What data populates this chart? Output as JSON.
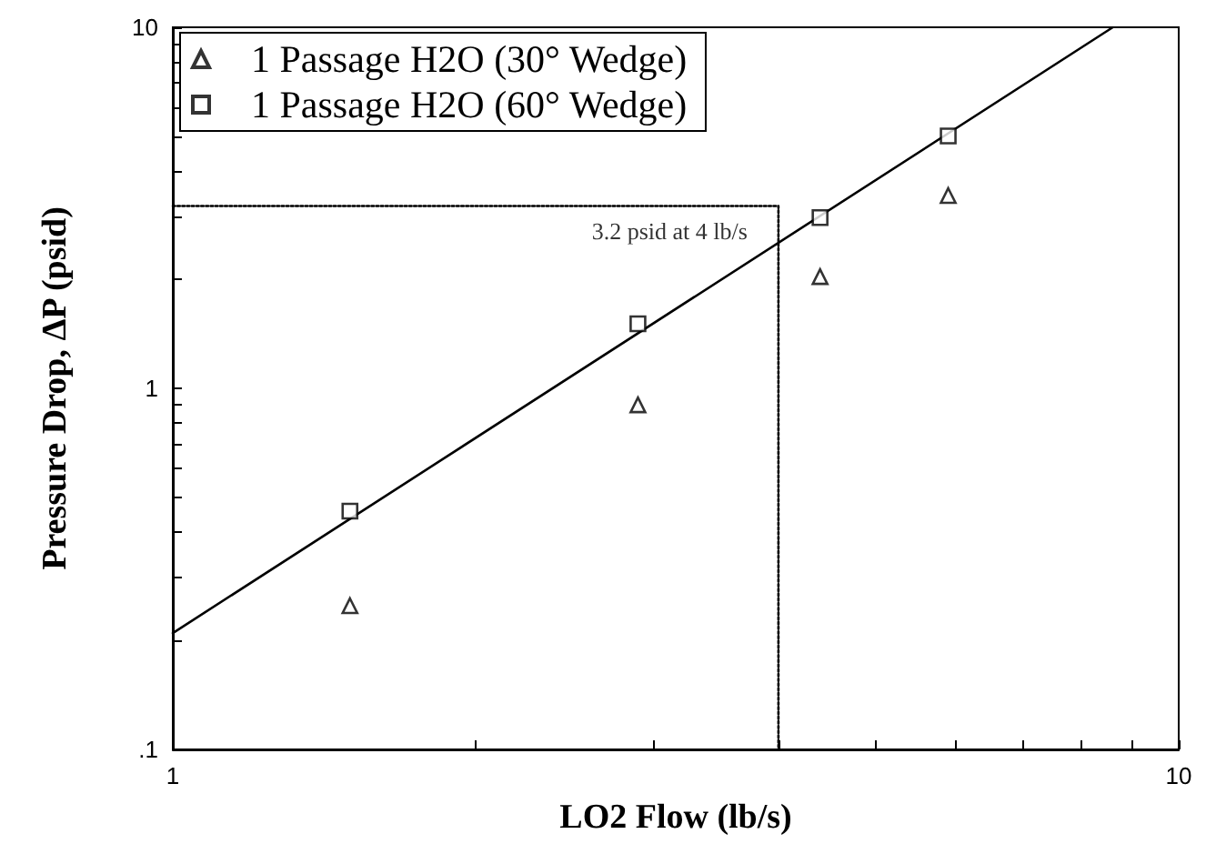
{
  "chart_data": {
    "type": "scatter",
    "xlabel": "LO2 Flow (lb/s)",
    "ylabel": "Pressure Drop, ΔP (psid)",
    "log": "xy",
    "xlim": [
      1,
      10
    ],
    "ylim": [
      0.1,
      10
    ],
    "xticks": [
      1,
      {
        "value": 2,
        "label": null
      },
      {
        "value": 3,
        "label": null
      },
      {
        "value": 4,
        "label": null
      },
      {
        "value": 5,
        "label": null
      },
      {
        "value": 6,
        "label": null
      },
      {
        "value": 7,
        "label": null
      },
      {
        "value": 8,
        "label": null
      },
      {
        "value": 9,
        "label": null
      },
      10
    ],
    "yticks": [
      {
        "value": 0.1,
        "label": ".1"
      },
      {
        "value": 0.2,
        "label": null
      },
      {
        "value": 0.3,
        "label": null
      },
      {
        "value": 0.4,
        "label": null
      },
      {
        "value": 0.5,
        "label": null
      },
      {
        "value": 0.6,
        "label": null
      },
      {
        "value": 0.7,
        "label": null
      },
      {
        "value": 0.8,
        "label": null
      },
      {
        "value": 0.9,
        "label": null
      },
      1,
      {
        "value": 2,
        "label": null
      },
      {
        "value": 3,
        "label": null
      },
      {
        "value": 4,
        "label": null
      },
      {
        "value": 5,
        "label": null
      },
      {
        "value": 6,
        "label": null
      },
      {
        "value": 7,
        "label": null
      },
      {
        "value": 8,
        "label": null
      },
      {
        "value": 9,
        "label": null
      },
      10
    ],
    "legend": "top left",
    "grid": false,
    "series": [
      {
        "name": "1 Passage H2O (30° Wedge)",
        "color": "#000000",
        "marker": "triangle",
        "x": [
          1.5,
          2.9,
          4.4,
          5.9
        ],
        "values": [
          0.25,
          0.9,
          2.04,
          3.42
        ]
      },
      {
        "name": "1 Passage H2O (60° Wedge)",
        "color": "#000000",
        "marker": "square",
        "x": [
          1.5,
          2.9,
          4.4,
          5.9
        ],
        "values": [
          0.457,
          1.51,
          2.97,
          5.0
        ]
      },
      {
        "type": "line",
        "color": "#000000",
        "marker": "none",
        "line_style": "solid",
        "x": [
          1,
          8.6
        ],
        "values": [
          0.21,
          10
        ]
      },
      {
        "type": "line",
        "color": "#000000",
        "marker": "none",
        "line_style": "dotted",
        "x": [
          1,
          4,
          4
        ],
        "values": [
          3.2,
          3.2,
          0.1
        ]
      }
    ],
    "annotations": [
      {
        "text": "3.2 psid at 4 lb/s",
        "x": 4,
        "y": 3.2
      }
    ]
  }
}
